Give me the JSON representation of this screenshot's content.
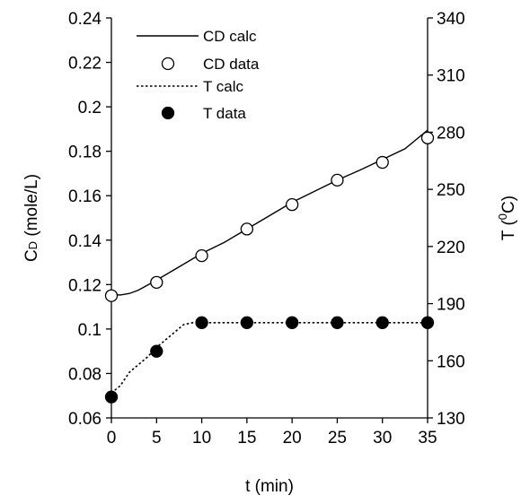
{
  "chart_data": {
    "type": "line",
    "x_axis": {
      "label": "t (min)",
      "range": [
        0,
        35
      ],
      "ticks": [
        0,
        5,
        10,
        15,
        20,
        25,
        30,
        35
      ],
      "tick_labels": [
        "0",
        "5",
        "10",
        "15",
        "20",
        "25",
        "30",
        "35"
      ]
    },
    "y_axis_left": {
      "label_main": "C",
      "label_sub": "D",
      "label_rest": " (mole/L)",
      "range": [
        0.06,
        0.24
      ],
      "ticks": [
        0.06,
        0.08,
        0.1,
        0.12,
        0.14,
        0.16,
        0.18,
        0.2,
        0.22,
        0.24
      ],
      "tick_labels": [
        "0.06",
        "0.08",
        "0.1",
        "0.12",
        "0.14",
        "0.16",
        "0.18",
        "0.2",
        "0.22",
        "0.24"
      ]
    },
    "y_axis_right": {
      "label_main": "T (",
      "label_sup": "0",
      "label_rest": "C)",
      "range": [
        130,
        340
      ],
      "ticks": [
        130,
        160,
        190,
        220,
        250,
        280,
        310,
        340
      ],
      "tick_labels": [
        "130",
        "160",
        "190",
        "220",
        "250",
        "280",
        "310",
        "340"
      ]
    },
    "grid": false,
    "legend_position": "top-left",
    "series": [
      {
        "name": "CD calc",
        "style": "solid-line",
        "axis": "left",
        "x": [
          0,
          1,
          2,
          3,
          5,
          7,
          10,
          12.5,
          15,
          17.5,
          20,
          22.5,
          25,
          27.5,
          30,
          32.5,
          35
        ],
        "y": [
          0.1155,
          0.1153,
          0.116,
          0.1175,
          0.122,
          0.1268,
          0.134,
          0.139,
          0.145,
          0.151,
          0.157,
          0.162,
          0.167,
          0.1715,
          0.1763,
          0.1811,
          0.1895
        ]
      },
      {
        "name": "CD data",
        "style": "open-circle",
        "axis": "left",
        "x": [
          0,
          5,
          10,
          15,
          20,
          25,
          30,
          35
        ],
        "y": [
          0.115,
          0.121,
          0.133,
          0.145,
          0.156,
          0.167,
          0.175,
          0.186
        ]
      },
      {
        "name": "T calc",
        "style": "dotted-line",
        "axis": "right",
        "x": [
          0,
          1,
          2,
          3,
          4,
          5,
          6,
          7,
          8,
          9,
          10,
          15,
          20,
          25,
          30,
          35
        ],
        "y": [
          143,
          147,
          154,
          158,
          162,
          167,
          171,
          175,
          179,
          180,
          180,
          180,
          180,
          180,
          180,
          180
        ]
      },
      {
        "name": "T data",
        "style": "filled-circle",
        "axis": "right",
        "x": [
          0,
          5,
          10,
          15,
          20,
          25,
          30,
          35
        ],
        "y": [
          141,
          165,
          180,
          180,
          180,
          180,
          180,
          180
        ]
      }
    ]
  }
}
